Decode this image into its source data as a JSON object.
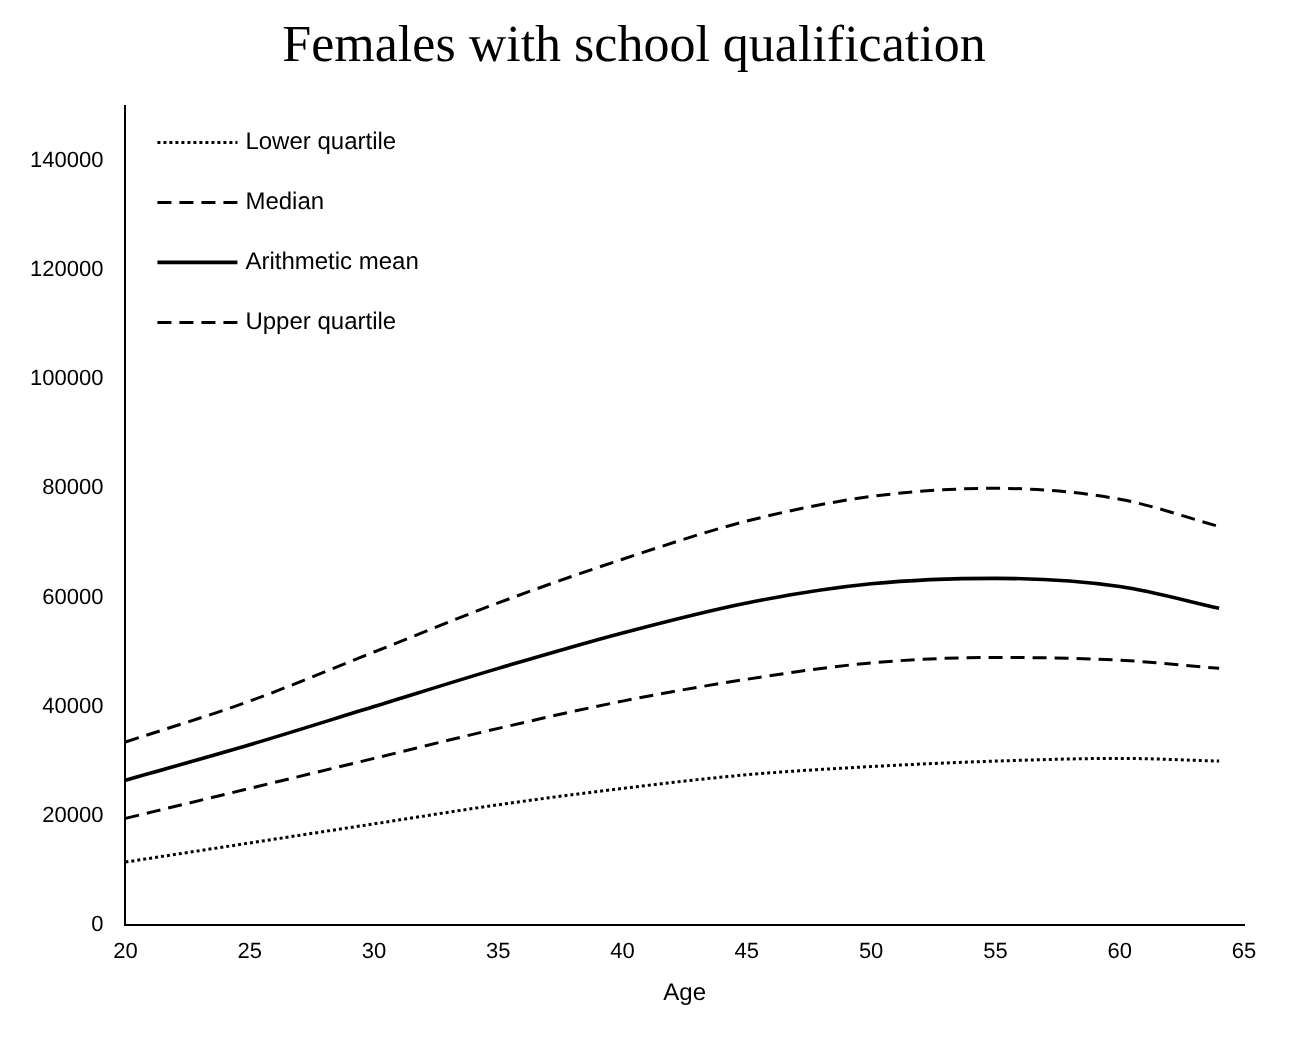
{
  "chart_data": {
    "type": "line",
    "title": "Females with school qualification",
    "xlabel": "Age",
    "x": [
      20,
      25,
      30,
      35,
      40,
      45,
      50,
      55,
      60,
      64
    ],
    "series": [
      {
        "name": "Lower quartile",
        "color": "#000000",
        "line_style": "dotted",
        "values": [
          11500,
          15000,
          18500,
          22000,
          25000,
          27500,
          29000,
          30000,
          30500,
          30000
        ]
      },
      {
        "name": "Median",
        "color": "#000000",
        "line_style": "dashed",
        "values": [
          19500,
          25000,
          30500,
          36000,
          41000,
          45000,
          48000,
          49000,
          48500,
          47000
        ]
      },
      {
        "name": "Arithmetic mean",
        "color": "#000000",
        "line_style": "solid",
        "values": [
          26500,
          33000,
          40000,
          47000,
          53500,
          59000,
          62500,
          63500,
          62000,
          58000
        ]
      },
      {
        "name": "Upper quartile",
        "color": "#000000",
        "line_style": "dashed",
        "values": [
          33500,
          41000,
          50000,
          59000,
          67000,
          74000,
          78500,
          80000,
          78000,
          73000
        ]
      }
    ],
    "xlim": [
      20,
      65
    ],
    "xticks": [
      20,
      25,
      30,
      35,
      40,
      45,
      50,
      55,
      60,
      65
    ],
    "ylim": [
      0,
      150000
    ],
    "yticks": [
      0,
      20000,
      40000,
      60000,
      80000,
      100000,
      120000,
      140000
    ],
    "grid": false,
    "legend": "top left",
    "marker": "none"
  }
}
